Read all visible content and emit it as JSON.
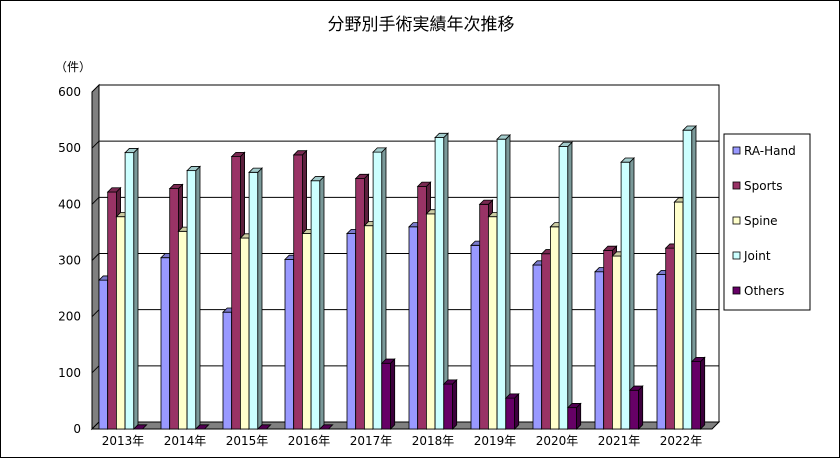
{
  "chart_data": {
    "type": "bar",
    "title": "分野別手術実績年次推移",
    "ylabel": "（件）",
    "xlabel": "",
    "ylim": [
      0,
      600
    ],
    "yticks": [
      0,
      100,
      200,
      300,
      400,
      500,
      600
    ],
    "grid": true,
    "legend_position": "right",
    "categories": [
      "2013年",
      "2014年",
      "2015年",
      "2016年",
      "2017年",
      "2018年",
      "2019年",
      "2020年",
      "2021年",
      "2022年"
    ],
    "series": [
      {
        "name": "RA-Hand",
        "color": "#9999ff",
        "values": [
          265,
          305,
          208,
          302,
          348,
          360,
          327,
          292,
          280,
          275
        ]
      },
      {
        "name": "Sports",
        "color": "#993366",
        "values": [
          422,
          428,
          485,
          488,
          446,
          432,
          400,
          312,
          318,
          322
        ]
      },
      {
        "name": "Spine",
        "color": "#ffffcc",
        "values": [
          378,
          352,
          340,
          348,
          362,
          383,
          378,
          360,
          308,
          404
        ]
      },
      {
        "name": "Joint",
        "color": "#ccffff",
        "values": [
          492,
          460,
          457,
          442,
          493,
          519,
          516,
          503,
          475,
          532
        ]
      },
      {
        "name": "Others",
        "color": "#660066",
        "values": [
          0,
          0,
          0,
          0,
          117,
          80,
          55,
          38,
          69,
          120
        ]
      }
    ]
  }
}
